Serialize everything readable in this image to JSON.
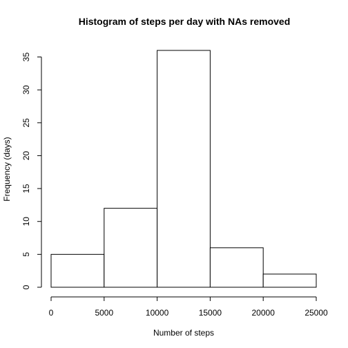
{
  "chart_data": {
    "type": "bar",
    "title": "Histogram of steps per day with NAs removed",
    "xlabel": "Number of steps",
    "ylabel": "Frequency (days)",
    "bins": [
      {
        "start": 0,
        "end": 5000,
        "value": 5
      },
      {
        "start": 5000,
        "end": 10000,
        "value": 12
      },
      {
        "start": 10000,
        "end": 15000,
        "value": 36
      },
      {
        "start": 15000,
        "end": 20000,
        "value": 6
      },
      {
        "start": 20000,
        "end": 25000,
        "value": 2
      }
    ],
    "xlim": [
      0,
      25000
    ],
    "ylim": [
      0,
      36
    ],
    "xticks": [
      0,
      5000,
      10000,
      15000,
      20000,
      25000
    ],
    "yticks": [
      0,
      5,
      10,
      15,
      20,
      25,
      30,
      35
    ],
    "grid": false
  }
}
